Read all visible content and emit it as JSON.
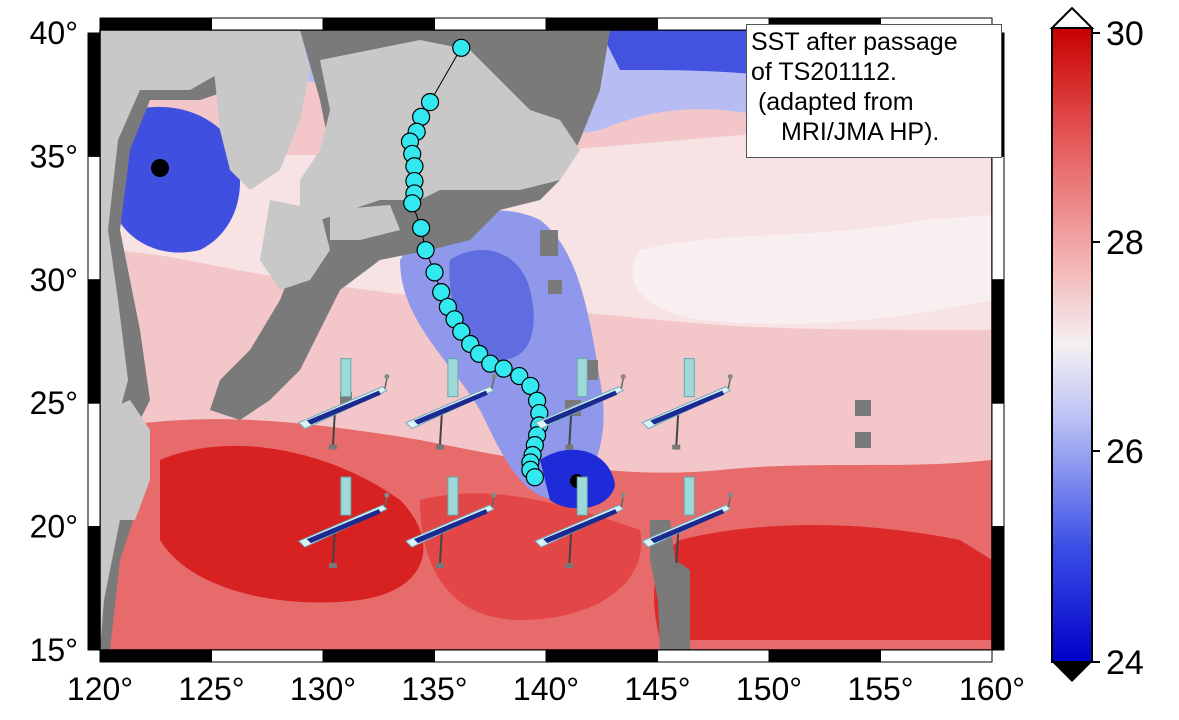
{
  "caption": {
    "line1": "SST after passage",
    "line2": "of TS201112.",
    "line3": " (adapted from",
    "line4": "MRI/JMA HP)."
  },
  "axes": {
    "lon_ticks": [
      "120°",
      "125°",
      "130°",
      "135°",
      "140°",
      "145°",
      "150°",
      "155°",
      "160°"
    ],
    "lat_ticks": [
      "40°",
      "35°",
      "30°",
      "25°",
      "20°",
      "15°"
    ]
  },
  "colorbar": {
    "min_label": "24",
    "max_label": "30",
    "labels": [
      "30",
      "28",
      "26",
      "24"
    ],
    "low_color": "#000000",
    "high_color": "#ffffff",
    "cold_color": "#1010d0",
    "warm_color": "#d81818"
  },
  "map_colors": {
    "land": "#c8c8c8",
    "no_data": "#7a7a7a",
    "track_marker": "#33e8ee"
  },
  "track": {
    "name": "TS201112",
    "points": [
      [
        136.2,
        39.4
      ],
      [
        134.8,
        37.2
      ],
      [
        134.4,
        36.6
      ],
      [
        134.2,
        36.0
      ],
      [
        133.9,
        35.6
      ],
      [
        134.0,
        35.1
      ],
      [
        134.1,
        34.6
      ],
      [
        134.1,
        34.0
      ],
      [
        134.1,
        33.5
      ],
      [
        134.0,
        33.1
      ],
      [
        134.4,
        32.1
      ],
      [
        134.6,
        31.2
      ],
      [
        135.0,
        30.3
      ],
      [
        135.3,
        29.5
      ],
      [
        135.6,
        28.9
      ],
      [
        135.9,
        28.4
      ],
      [
        136.2,
        27.9
      ],
      [
        136.6,
        27.4
      ],
      [
        137.0,
        27.0
      ],
      [
        137.5,
        26.6
      ],
      [
        138.1,
        26.4
      ],
      [
        138.8,
        26.1
      ],
      [
        139.3,
        25.7
      ],
      [
        139.6,
        25.1
      ],
      [
        139.7,
        24.6
      ],
      [
        139.7,
        24.1
      ],
      [
        139.6,
        23.7
      ],
      [
        139.5,
        23.3
      ],
      [
        139.4,
        22.9
      ],
      [
        139.3,
        22.6
      ],
      [
        139.3,
        22.3
      ],
      [
        139.5,
        22.0
      ]
    ]
  },
  "vehicles": {
    "icon": "wave-glider-icon",
    "positions": [
      [
        130.8,
        24.7
      ],
      [
        135.6,
        24.7
      ],
      [
        141.4,
        24.7
      ],
      [
        146.2,
        24.7
      ],
      [
        130.8,
        19.9
      ],
      [
        135.6,
        19.9
      ],
      [
        141.4,
        19.9
      ],
      [
        146.2,
        19.9
      ]
    ]
  }
}
